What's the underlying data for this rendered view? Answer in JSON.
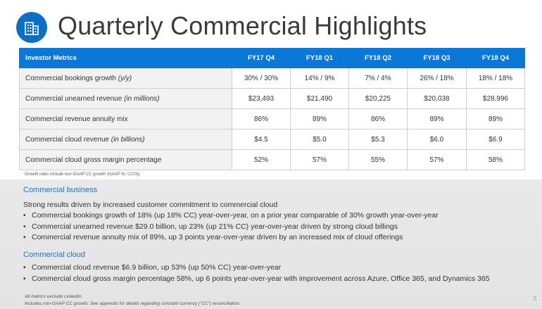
{
  "title": "Quarterly Commercial Highlights",
  "table": {
    "headers": [
      "Investor Metrics",
      "FY17 Q4",
      "FY18 Q1",
      "FY18 Q2",
      "FY18 Q3",
      "FY18 Q4"
    ],
    "rows": [
      {
        "label": "Commercial bookings growth",
        "qual": "(y/y)",
        "values": [
          "30% / 30%",
          "14% / 9%",
          "7% / 4%",
          "26% / 18%",
          "18% / 18%"
        ]
      },
      {
        "label": "Commercial unearned revenue",
        "qual": "(in millions)",
        "values": [
          "$23,493",
          "$21,490",
          "$20,225",
          "$20,038",
          "$28,996"
        ]
      },
      {
        "label": "Commercial revenue annuity mix",
        "qual": "",
        "values": [
          "86%",
          "89%",
          "86%",
          "89%",
          "89%"
        ]
      },
      {
        "label": "Commercial cloud revenue",
        "qual": "(in billions)",
        "values": [
          "$4.5",
          "$5.0",
          "$5.3",
          "$6.0",
          "$6.9"
        ]
      },
      {
        "label": "Commercial cloud gross margin percentage",
        "qual": "",
        "values": [
          "52%",
          "57%",
          "55%",
          "57%",
          "58%"
        ]
      }
    ],
    "footnote": "Growth rates include non-GAAP CC growth (GAAP % / CC%)."
  },
  "business": {
    "heading": "Commercial business",
    "lead": "Strong results driven by increased customer commitment to commercial cloud",
    "bullets": [
      "Commercial bookings growth of 18% (up 18% CC) year-over-year, on a prior year comparable of 30% growth year-over-year",
      "Commercial unearned revenue $29.0 billion, up 23% (up 21% CC) year-over-year driven by strong cloud billings",
      "Commercial revenue annuity mix of 89%, up 3 points year-over-year driven by an increased mix of cloud offerings"
    ]
  },
  "cloud": {
    "heading": "Commercial cloud",
    "bullets": [
      "Commercial cloud revenue $6.9 billion, up 53% (up 50% CC) year-over-year",
      "Commercial cloud gross margin percentage 58%, up 6 points year-over-year with improvement across Azure, Office 365, and Dynamics 365"
    ]
  },
  "footer": {
    "line1": "All metrics exclude LinkedIn.",
    "line2": "Includes non-GAAP CC growth. See appendix for details regarding constant currency (“CC”) reconciliation.",
    "page": "5"
  },
  "bullet_char": "•",
  "colors": {
    "accent": "#0b78d8",
    "heading": "#1a73c8",
    "panel": "#e6e6e6"
  },
  "icons": {
    "logo": "building-icon"
  }
}
